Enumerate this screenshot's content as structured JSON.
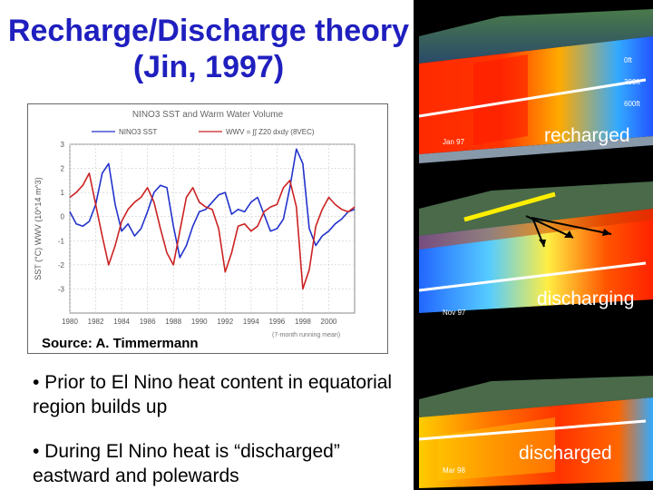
{
  "title": "Recharge/Discharge theory (Jin, 1997)",
  "source": "Source: A. Timmermann",
  "bullets": [
    "• Prior to El Nino heat content in equatorial region builds up",
    "• During El Nino heat is “discharged” eastward and polewards"
  ],
  "panels": [
    {
      "label": "recharged",
      "month": "Jan 97"
    },
    {
      "label": "discharging",
      "month": "Nov 97"
    },
    {
      "label": "discharged",
      "month": "Mar 98"
    }
  ],
  "depth_labels": [
    "0ft",
    "300ft",
    "600ft"
  ],
  "chart_data": {
    "type": "line",
    "title": "NINO3 SST and Warm Water Volume",
    "legend": [
      "NINO3 SST",
      "WWV = ∫∫ Z20 dxdy (8VEC)"
    ],
    "legend_position": "top",
    "ylabel": "SST (°C)   WWV (10^14 m^3)",
    "xlabel": "",
    "footnote": "(7-month running mean)",
    "xlim": [
      1980,
      2002
    ],
    "ylim": [
      -4,
      3
    ],
    "x_ticks": [
      1980,
      1982,
      1984,
      1986,
      1988,
      1990,
      1992,
      1994,
      1996,
      1998,
      2000
    ],
    "y_ticks": [
      3,
      2,
      1,
      0,
      -1,
      -2,
      -3
    ],
    "grid": true,
    "colors": {
      "sst": "#2233cc",
      "wwv": "#cc2222"
    },
    "series": [
      {
        "name": "NINO3 SST",
        "x": [
          1980,
          1980.5,
          1981,
          1981.5,
          1982,
          1982.5,
          1983,
          1983.5,
          1984,
          1984.5,
          1985,
          1985.5,
          1986,
          1986.5,
          1987,
          1987.5,
          1988,
          1988.5,
          1989,
          1989.5,
          1990,
          1990.5,
          1991,
          1991.5,
          1992,
          1992.5,
          1993,
          1993.5,
          1994,
          1994.5,
          1995,
          1995.5,
          1996,
          1996.5,
          1997,
          1997.5,
          1998,
          1998.5,
          1999,
          1999.5,
          2000,
          2000.5,
          2001,
          2001.5,
          2002
        ],
        "y": [
          0.2,
          -0.3,
          -0.4,
          -0.2,
          0.5,
          1.8,
          2.2,
          0.5,
          -0.6,
          -0.3,
          -0.8,
          -0.5,
          0.2,
          1.0,
          1.3,
          1.2,
          -0.4,
          -1.7,
          -1.2,
          -0.4,
          0.2,
          0.3,
          0.6,
          0.9,
          1.0,
          0.1,
          0.3,
          0.2,
          0.6,
          0.8,
          0.1,
          -0.6,
          -0.5,
          -0.1,
          1.2,
          2.8,
          2.2,
          -0.5,
          -1.2,
          -0.8,
          -0.6,
          -0.3,
          -0.1,
          0.2,
          0.3
        ]
      },
      {
        "name": "WWV = ∫∫ Z20 dxdy (8VEC)",
        "x": [
          1980,
          1980.5,
          1981,
          1981.5,
          1982,
          1982.5,
          1983,
          1983.5,
          1984,
          1984.5,
          1985,
          1985.5,
          1986,
          1986.5,
          1987,
          1987.5,
          1988,
          1988.5,
          1989,
          1989.5,
          1990,
          1990.5,
          1991,
          1991.5,
          1992,
          1992.5,
          1993,
          1993.5,
          1994,
          1994.5,
          1995,
          1995.5,
          1996,
          1996.5,
          1997,
          1997.5,
          1998,
          1998.5,
          1999,
          1999.5,
          2000,
          2000.5,
          2001,
          2001.5,
          2002
        ],
        "y": [
          0.8,
          1.0,
          1.3,
          1.8,
          0.5,
          -0.8,
          -2.0,
          -1.2,
          -0.2,
          0.3,
          0.6,
          0.8,
          1.2,
          0.6,
          -0.5,
          -1.5,
          -2.0,
          -0.6,
          0.8,
          1.2,
          0.6,
          0.4,
          0.3,
          -0.5,
          -2.3,
          -1.5,
          -0.4,
          -0.3,
          -0.6,
          -0.4,
          0.2,
          0.4,
          0.5,
          1.2,
          1.5,
          0.4,
          -3.0,
          -2.2,
          -0.4,
          0.3,
          0.8,
          0.5,
          0.3,
          0.2,
          0.4
        ]
      }
    ]
  }
}
